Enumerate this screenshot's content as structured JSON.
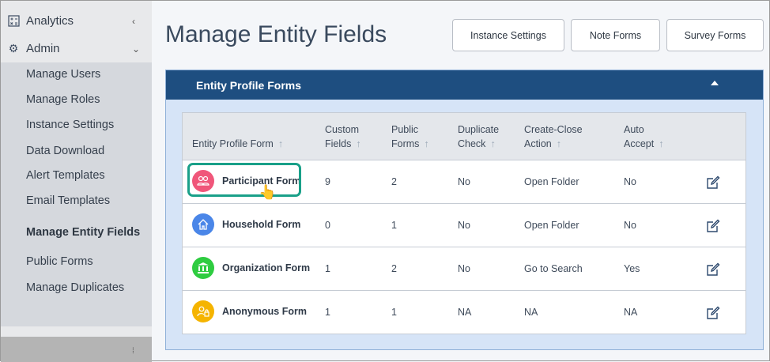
{
  "sidebar": {
    "top_items": [
      {
        "label": "Analytics",
        "icon": "calculator-icon",
        "chevron": "‹"
      },
      {
        "label": "Admin",
        "icon": "gear-icon",
        "chevron": "⌄"
      }
    ],
    "sub_items": [
      {
        "label": "Manage Users"
      },
      {
        "label": "Manage Roles"
      },
      {
        "label": "Instance Settings"
      },
      {
        "label": "Data Download"
      },
      {
        "label": "Alert Templates"
      },
      {
        "label": "Email Templates"
      },
      {
        "label": "Manage Entity Fields",
        "active": true
      },
      {
        "label": "Public Forms"
      },
      {
        "label": "Manage Duplicates"
      }
    ]
  },
  "header": {
    "title": "Manage Entity Fields",
    "buttons": [
      "Instance Settings",
      "Note Forms",
      "Survey Forms"
    ]
  },
  "panel": {
    "title": "Entity Profile Forms",
    "columns": [
      [
        "Entity Profile Form"
      ],
      [
        "Custom",
        "Fields"
      ],
      [
        "Public",
        "Forms"
      ],
      [
        "Duplicate",
        "Check"
      ],
      [
        "Create-Close",
        "Action"
      ],
      [
        "Auto",
        "Accept"
      ]
    ],
    "rows": [
      {
        "name": "Participant Form",
        "icon": "users-icon",
        "color": "#f0567a",
        "custom": "9",
        "public": "2",
        "dup": "No",
        "action": "Open Folder",
        "auto": "No",
        "highlighted": true
      },
      {
        "name": "Household Form",
        "icon": "home-icon",
        "color": "#4a86e8",
        "custom": "0",
        "public": "1",
        "dup": "No",
        "action": "Open Folder",
        "auto": "No"
      },
      {
        "name": "Organization Form",
        "icon": "bank-icon",
        "color": "#2ecc40",
        "custom": "1",
        "public": "2",
        "dup": "No",
        "action": "Go to Search",
        "auto": "Yes"
      },
      {
        "name": "Anonymous Form",
        "icon": "user-lock-icon",
        "color": "#f5b400",
        "custom": "1",
        "public": "1",
        "dup": "NA",
        "action": "NA",
        "auto": "NA"
      }
    ]
  },
  "colors": {
    "panel_header": "#1e4e80",
    "highlight": "#19a089"
  }
}
